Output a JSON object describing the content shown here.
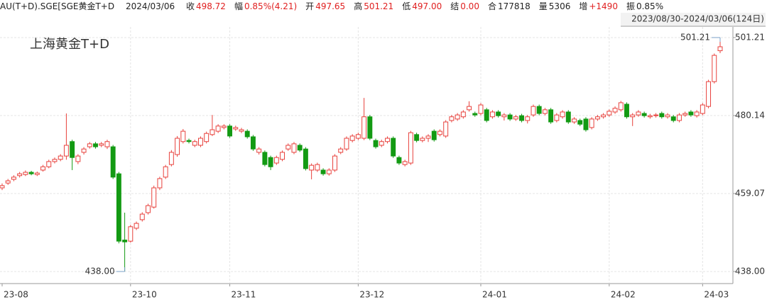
{
  "header": {
    "symbol": "AU(T+D).SGE[SGE黄金T+D",
    "date": "2024/03/06",
    "fields": [
      {
        "label": "收",
        "value": "498.72",
        "color": "#e02020"
      },
      {
        "label": "幅",
        "value": "0.85%(4.21)",
        "color": "#e02020"
      },
      {
        "label": "开",
        "value": "497.65",
        "color": "#e02020"
      },
      {
        "label": "高",
        "value": "501.21",
        "color": "#e02020"
      },
      {
        "label": "低",
        "value": "497.00",
        "color": "#e02020"
      },
      {
        "label": "结",
        "value": "0.00",
        "color": "#e02020"
      },
      {
        "label": "合",
        "value": "177818",
        "color": "#222222"
      },
      {
        "label": "量",
        "value": "5306",
        "color": "#222222"
      },
      {
        "label": "增",
        "value": "+1490",
        "color": "#e02020"
      },
      {
        "label": "振",
        "value": "0.85%",
        "color": "#222222"
      }
    ]
  },
  "chart_data": {
    "type": "candlestick",
    "title": "上海黄金T+D",
    "range": "2023/08/30-2024/03/06(124日)",
    "up_color": "#e8413c",
    "down_color": "#139a13",
    "ylim": [
      434.74,
      505.61
    ],
    "yticks": [
      {
        "value": 438,
        "label": "438.00"
      },
      459.07,
      480.14,
      501.21
    ],
    "annotations": [
      {
        "value": 501.21,
        "label": "501.21",
        "color": "#c00000"
      },
      {
        "value": 438,
        "label": "438.00",
        "color": "#139a13"
      }
    ],
    "categories": [
      "23-08",
      null,
      null,
      null,
      null,
      null,
      null,
      null,
      null,
      null,
      null,
      null,
      null,
      null,
      null,
      null,
      null,
      null,
      null,
      null,
      null,
      null,
      "23-10",
      null,
      null,
      null,
      null,
      null,
      null,
      null,
      null,
      null,
      null,
      null,
      null,
      null,
      null,
      null,
      null,
      "23-11",
      null,
      null,
      null,
      null,
      null,
      null,
      null,
      null,
      null,
      null,
      null,
      null,
      null,
      null,
      null,
      null,
      null,
      null,
      null,
      null,
      null,
      "23-12",
      null,
      null,
      null,
      null,
      null,
      null,
      null,
      null,
      null,
      null,
      null,
      null,
      null,
      null,
      null,
      null,
      null,
      null,
      null,
      null,
      "24-01",
      null,
      null,
      null,
      null,
      null,
      null,
      null,
      null,
      null,
      null,
      null,
      null,
      null,
      null,
      null,
      null,
      null,
      null,
      null,
      null,
      null,
      "24-02",
      null,
      null,
      null,
      null,
      null,
      null,
      null,
      null,
      null,
      null,
      null,
      null,
      null,
      null,
      null,
      "24-03",
      null,
      null,
      null
    ],
    "candles": [
      [
        460.6,
        461.8,
        460.0,
        461.2
      ],
      [
        461.9,
        463.0,
        461.4,
        462.5
      ],
      [
        462.9,
        464.0,
        462.4,
        463.5
      ],
      [
        463.9,
        464.9,
        463.4,
        464.4
      ],
      [
        464.2,
        465.3,
        463.8,
        464.8
      ],
      [
        464.8,
        465.2,
        464.0,
        464.4
      ],
      [
        464.2,
        465.0,
        463.8,
        464.6
      ],
      [
        465.4,
        466.8,
        465.0,
        466.3
      ],
      [
        466.3,
        468.2,
        465.9,
        467.7
      ],
      [
        467.7,
        468.8,
        467.2,
        468.3
      ],
      [
        468.3,
        469.7,
        467.8,
        469.2
      ],
      [
        469.2,
        480.7,
        468.2,
        472.1
      ],
      [
        473.1,
        473.6,
        465.4,
        468.8
      ],
      [
        467.7,
        469.7,
        467.0,
        469.2
      ],
      [
        470.2,
        471.6,
        469.6,
        471.1
      ],
      [
        471.7,
        473.0,
        471.2,
        472.5
      ],
      [
        472.5,
        473.0,
        471.2,
        471.7
      ],
      [
        472.1,
        473.0,
        471.6,
        472.5
      ],
      [
        471.7,
        473.6,
        471.1,
        473.1
      ],
      [
        471.7,
        472.2,
        463.0,
        463.5
      ],
      [
        464.4,
        464.9,
        445.6,
        446.2
      ],
      [
        446.5,
        453.9,
        438.0,
        446.0
      ],
      [
        446.2,
        450.6,
        445.8,
        450.1
      ],
      [
        449.7,
        451.5,
        449.2,
        451.0
      ],
      [
        452.0,
        454.0,
        451.5,
        453.5
      ],
      [
        453.9,
        456.3,
        453.4,
        455.8
      ],
      [
        455.4,
        461.2,
        455.0,
        460.6
      ],
      [
        460.6,
        463.6,
        460.0,
        463.1
      ],
      [
        463.5,
        466.8,
        463.0,
        466.3
      ],
      [
        466.9,
        470.8,
        466.4,
        470.2
      ],
      [
        469.6,
        474.6,
        469.0,
        474.0
      ],
      [
        473.1,
        476.5,
        472.6,
        475.9
      ],
      [
        473.4,
        473.9,
        472.6,
        473.1
      ],
      [
        472.1,
        473.6,
        471.6,
        473.1
      ],
      [
        472.1,
        474.5,
        471.6,
        474.0
      ],
      [
        473.1,
        475.8,
        472.6,
        475.3
      ],
      [
        475.0,
        480.3,
        474.6,
        476.3
      ],
      [
        475.9,
        477.8,
        475.4,
        477.3
      ],
      [
        476.9,
        477.8,
        476.4,
        477.3
      ],
      [
        477.3,
        477.8,
        474.1,
        474.6
      ],
      [
        476.5,
        477.4,
        476.0,
        476.9
      ],
      [
        475.9,
        476.8,
        475.4,
        476.3
      ],
      [
        475.9,
        476.4,
        473.9,
        474.4
      ],
      [
        474.4,
        474.9,
        470.6,
        471.1
      ],
      [
        470.2,
        471.6,
        469.6,
        471.1
      ],
      [
        470.2,
        470.7,
        466.4,
        466.9
      ],
      [
        468.8,
        469.3,
        465.4,
        466.3
      ],
      [
        467.3,
        469.3,
        466.8,
        468.8
      ],
      [
        468.3,
        470.7,
        467.8,
        470.2
      ],
      [
        471.1,
        472.6,
        470.6,
        472.1
      ],
      [
        470.2,
        473.0,
        469.7,
        472.5
      ],
      [
        472.1,
        472.6,
        470.3,
        470.8
      ],
      [
        471.1,
        471.6,
        465.3,
        465.8
      ],
      [
        465.4,
        467.2,
        462.9,
        466.7
      ],
      [
        465.4,
        467.4,
        464.9,
        466.9
      ],
      [
        465.4,
        465.9,
        463.9,
        464.4
      ],
      [
        464.4,
        465.9,
        463.9,
        465.4
      ],
      [
        465.4,
        469.7,
        464.9,
        469.2
      ],
      [
        470.2,
        471.6,
        469.7,
        471.1
      ],
      [
        471.1,
        474.5,
        470.6,
        474.0
      ],
      [
        473.4,
        475.1,
        472.9,
        474.6
      ],
      [
        474.0,
        475.5,
        473.5,
        475.0
      ],
      [
        474.0,
        484.9,
        473.5,
        479.8
      ],
      [
        479.8,
        480.3,
        473.5,
        474.0
      ],
      [
        473.4,
        473.9,
        471.2,
        471.7
      ],
      [
        472.1,
        473.6,
        471.6,
        473.1
      ],
      [
        473.1,
        474.5,
        472.6,
        474.0
      ],
      [
        474.0,
        474.5,
        468.7,
        469.2
      ],
      [
        468.8,
        469.3,
        466.8,
        467.3
      ],
      [
        466.9,
        468.2,
        466.4,
        467.7
      ],
      [
        467.3,
        476.0,
        466.8,
        475.5
      ],
      [
        475.0,
        475.5,
        472.9,
        473.4
      ],
      [
        473.4,
        474.5,
        472.9,
        474.0
      ],
      [
        474.0,
        475.1,
        473.0,
        474.6
      ],
      [
        475.9,
        476.4,
        473.1,
        473.6
      ],
      [
        475.0,
        476.4,
        474.5,
        475.9
      ],
      [
        474.6,
        478.9,
        474.1,
        478.4
      ],
      [
        478.8,
        480.3,
        478.3,
        479.8
      ],
      [
        479.2,
        480.8,
        478.7,
        480.3
      ],
      [
        479.8,
        481.6,
        479.3,
        481.1
      ],
      [
        481.7,
        484.0,
        481.2,
        482.6
      ],
      [
        480.7,
        481.2,
        479.8,
        480.3
      ],
      [
        480.7,
        483.5,
        480.2,
        483.0
      ],
      [
        481.7,
        482.2,
        478.3,
        478.8
      ],
      [
        479.8,
        481.6,
        479.3,
        481.1
      ],
      [
        481.1,
        481.6,
        479.6,
        480.1
      ],
      [
        479.8,
        480.8,
        478.8,
        480.3
      ],
      [
        480.3,
        480.8,
        478.7,
        479.2
      ],
      [
        479.2,
        480.3,
        478.7,
        479.8
      ],
      [
        480.1,
        480.6,
        478.3,
        478.8
      ],
      [
        478.8,
        480.3,
        478.0,
        479.8
      ],
      [
        480.3,
        483.1,
        479.8,
        482.6
      ],
      [
        482.6,
        483.1,
        480.2,
        480.7
      ],
      [
        480.7,
        482.2,
        480.2,
        481.7
      ],
      [
        481.7,
        482.2,
        477.9,
        478.4
      ],
      [
        478.8,
        480.8,
        478.3,
        480.3
      ],
      [
        479.8,
        481.6,
        479.3,
        481.1
      ],
      [
        481.1,
        481.6,
        477.9,
        478.4
      ],
      [
        478.4,
        479.7,
        477.9,
        479.2
      ],
      [
        478.8,
        479.3,
        477.3,
        477.8
      ],
      [
        479.2,
        479.7,
        475.8,
        476.3
      ],
      [
        476.9,
        479.7,
        476.4,
        479.2
      ],
      [
        479.2,
        480.3,
        478.7,
        479.8
      ],
      [
        479.8,
        480.8,
        479.3,
        480.3
      ],
      [
        480.3,
        481.8,
        479.8,
        481.3
      ],
      [
        481.1,
        482.6,
        480.6,
        482.1
      ],
      [
        481.7,
        484.1,
        481.2,
        483.6
      ],
      [
        483.2,
        483.7,
        479.3,
        479.8
      ],
      [
        479.8,
        480.8,
        477.3,
        480.3
      ],
      [
        480.3,
        481.6,
        479.8,
        481.1
      ],
      [
        480.7,
        481.2,
        479.6,
        480.1
      ],
      [
        479.8,
        480.6,
        479.3,
        480.1
      ],
      [
        480.1,
        480.8,
        479.6,
        480.3
      ],
      [
        480.7,
        481.2,
        479.3,
        479.8
      ],
      [
        479.8,
        480.8,
        479.3,
        480.3
      ],
      [
        479.8,
        480.3,
        478.3,
        478.8
      ],
      [
        478.8,
        480.8,
        478.3,
        480.3
      ],
      [
        480.3,
        481.2,
        479.8,
        480.7
      ],
      [
        481.1,
        481.6,
        479.8,
        480.3
      ],
      [
        480.1,
        481.6,
        479.6,
        481.1
      ],
      [
        480.7,
        483.5,
        480.2,
        483.0
      ],
      [
        482.6,
        489.8,
        482.1,
        489.3
      ],
      [
        489.3,
        496.9,
        488.8,
        496.4
      ],
      [
        497.65,
        501.21,
        497.0,
        498.72
      ]
    ]
  }
}
